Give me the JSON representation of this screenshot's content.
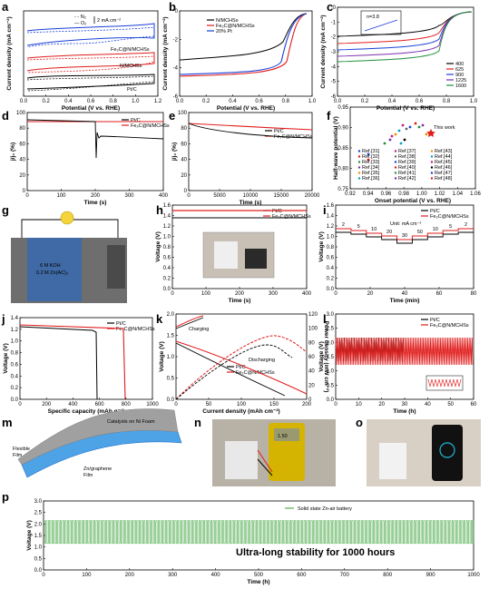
{
  "panels": {
    "a": {
      "letter": "a",
      "ylabel": "Current density (mA cm⁻²)",
      "xlabel": "Potential (V vs. RHE)",
      "scale_label": "2 mA cm⁻²",
      "legend": [
        "N₂",
        "O₂"
      ],
      "labels": [
        "Fe₃C@N/MCHSs",
        "N/MCHSs",
        "Pt/C"
      ],
      "xticks": [
        "0.0",
        "0.2",
        "0.4",
        "0.6",
        "0.8",
        "1.0",
        "1.2"
      ]
    },
    "b": {
      "letter": "b",
      "ylabel": "Current density (mA cm⁻²)",
      "xlabel": "Potential (V vs. RHE)",
      "legend": [
        "N/MCHSs",
        "Fe₃C@N/MCHSs",
        "20% Pt"
      ],
      "xticks": [
        "0.0",
        "0.2",
        "0.4",
        "0.6",
        "0.8",
        "1.0"
      ],
      "yticks": [
        "0",
        "-2",
        "-4",
        "-6"
      ]
    },
    "c": {
      "letter": "c",
      "ylabel": "Current density (mA cm⁻²)",
      "xlabel": "Potential (V vs. RHE)",
      "inset": "n=3.8",
      "legend": [
        "400",
        "625",
        "900",
        "1225",
        "1600"
      ],
      "xticks": [
        "0.0",
        "0.2",
        "0.4",
        "0.6",
        "0.8",
        "1.0"
      ],
      "yticks": [
        "0",
        "-1",
        "-2",
        "-3",
        "-4",
        "-5",
        "-6"
      ]
    },
    "d": {
      "letter": "d",
      "ylabel": "j/j₀ (%)",
      "xlabel": "Time (s)",
      "legend": [
        "Pt/C",
        "Fe₃C@N/MCHSs"
      ],
      "xticks": [
        "0",
        "100",
        "200",
        "300",
        "400"
      ],
      "yticks": [
        "0",
        "20",
        "40",
        "60",
        "80",
        "100"
      ]
    },
    "e": {
      "letter": "e",
      "ylabel": "j/j₀ (%)",
      "xlabel": "Time (s)",
      "legend": [
        "Pt/C",
        "Fe₃C@N/MCHSs"
      ],
      "xticks": [
        "0",
        "5000",
        "10000",
        "15000",
        "20000"
      ],
      "yticks": [
        "0",
        "20",
        "40",
        "60",
        "80",
        "100"
      ]
    },
    "f": {
      "letter": "f",
      "ylabel": "Half-wave potential (V)",
      "xlabel": "Onset potential (V vs. RHE)",
      "this_work": "This work",
      "refs": [
        "Ref.[31]",
        "Ref.[32]",
        "Ref.[33]",
        "Ref.[34]",
        "Ref.[35]",
        "Ref.[36]",
        "Ref.[37]",
        "Ref.[38]",
        "Ref.[39]",
        "Ref.[40]",
        "Ref.[41]",
        "Ref.[42]",
        "Ref.[43]",
        "Ref.[44]",
        "Ref.[45]",
        "Ref.[46]",
        "Ref.[47]",
        "Ref.[48]"
      ],
      "xticks": [
        "0.92",
        "0.94",
        "0.96",
        "0.98",
        "1.00",
        "1.02",
        "1.04",
        "1.06"
      ],
      "yticks": [
        "0.75",
        "0.80",
        "0.85",
        "0.90",
        "0.95"
      ]
    },
    "g": {
      "letter": "g",
      "electrolyte_line1": "6 M KOH",
      "electrolyte_line2": "0.2 M Zn(AC)₂"
    },
    "h": {
      "letter": "h",
      "ylabel": "Voltage (V)",
      "xlabel": "Time (s)",
      "legend": [
        "Pt/C",
        "Fe₃C@N/MCHSs"
      ],
      "xticks": [
        "0",
        "100",
        "200",
        "300",
        "400"
      ],
      "yticks": [
        "0.0",
        "0.2",
        "0.4",
        "0.6",
        "0.8",
        "1.0",
        "1.2",
        "1.4",
        "1.6"
      ]
    },
    "i": {
      "letter": "i",
      "ylabel": "Voltage (V)",
      "xlabel": "Time (min)",
      "legend": [
        "Pt/C",
        "Fe₃C@N/MCHSs"
      ],
      "units": "Unit: mA cm⁻²",
      "steps": [
        "2",
        "5",
        "10",
        "20",
        "30",
        "50",
        "10",
        "5",
        "2"
      ],
      "xticks": [
        "0",
        "20",
        "40",
        "60",
        "80"
      ],
      "yticks": [
        "0.0",
        "0.2",
        "0.4",
        "0.6",
        "0.8",
        "1.0",
        "1.2",
        "1.4",
        "1.6"
      ]
    },
    "j": {
      "letter": "j",
      "ylabel": "Voltage (V)",
      "xlabel": "Specific capacity (mAh g⁻¹)",
      "legend": [
        "Pt/C",
        "Fe₃C@N/MCHSs"
      ],
      "xticks": [
        "0",
        "200",
        "400",
        "600",
        "800",
        "1000"
      ],
      "yticks": [
        "0.0",
        "0.2",
        "0.4",
        "0.6",
        "0.8",
        "1.0",
        "1.2",
        "1.4"
      ]
    },
    "k": {
      "letter": "k",
      "ylabel": "Voltage (V)",
      "y2label": "Power density (mW cm⁻²)",
      "xlabel": "Current density (mAh cm⁻²)",
      "legend": [
        "Pt/C",
        "Fe₃C@N/MCHSs"
      ],
      "charging": "Charging",
      "discharging": "Discharging",
      "xticks": [
        "0",
        "50",
        "100",
        "150",
        "200"
      ],
      "yticks": [
        "0.0",
        "0.5",
        "1.0",
        "1.5",
        "2.0"
      ],
      "y2ticks": [
        "0",
        "20",
        "40",
        "60",
        "80",
        "100",
        "120"
      ]
    },
    "l": {
      "letter": "l",
      "ylabel": "Voltage (V)",
      "xlabel": "Time (h)",
      "legend": [
        "Pt/C",
        "Fe₃C@N/MCHSs"
      ],
      "xticks": [
        "0",
        "10",
        "20",
        "30",
        "40",
        "50",
        "60"
      ],
      "yticks": [
        "0.0",
        "0.5",
        "1.0",
        "1.5",
        "2.0",
        "2.5",
        "3.0"
      ]
    },
    "m": {
      "letter": "m",
      "catalysts": "Catalysts on Ni Foam",
      "flexible": "Flexible",
      "film": "Film",
      "zn": "Zn/graphene",
      "zn2": "Film"
    },
    "n": {
      "letter": "n",
      "reading": "1.50"
    },
    "o": {
      "letter": "o"
    },
    "p": {
      "letter": "p",
      "ylabel": "Voltage (V)",
      "xlabel": "Time (h)",
      "legend": "Solid state Zn-air battery",
      "annotation": "Ultra-long stability for 1000 hours",
      "xticks": [
        "0",
        "100",
        "200",
        "300",
        "400",
        "500",
        "600",
        "700",
        "800",
        "900",
        "1000"
      ],
      "yticks": [
        "0.0",
        "0.5",
        "1.0",
        "1.5",
        "2.0",
        "2.5",
        "3.0"
      ]
    }
  },
  "chart_data": [
    {
      "panel": "p",
      "type": "line",
      "series": [
        {
          "name": "Solid state Zn-air battery",
          "x": [
            0,
            1000
          ],
          "charge_v": 2.15,
          "discharge_v": 1.15
        }
      ],
      "xlim": [
        0,
        1000
      ],
      "ylim": [
        0,
        3.0
      ]
    },
    {
      "panel": "h",
      "type": "line",
      "series": [
        {
          "name": "Pt/C",
          "v": 1.36
        },
        {
          "name": "Fe₃C@N/MCHSs",
          "v": 1.48
        }
      ],
      "xlim": [
        0,
        400
      ],
      "ylim": [
        0,
        1.6
      ]
    },
    {
      "panel": "j",
      "type": "line",
      "series": [
        {
          "name": "Pt/C",
          "capacity": 580,
          "v": 1.25
        },
        {
          "name": "Fe₃C@N/MCHSs",
          "capacity": 790,
          "v": 1.28
        }
      ],
      "xlim": [
        0,
        1000
      ],
      "ylim": [
        0,
        1.4
      ]
    },
    {
      "panel": "d",
      "type": "line",
      "series": [
        {
          "name": "Pt/C",
          "end": 70
        },
        {
          "name": "Fe₃C@N/MCHSs",
          "end": 99
        }
      ],
      "xlim": [
        0,
        400
      ],
      "ylim": [
        0,
        100
      ]
    },
    {
      "panel": "e",
      "type": "line",
      "series": [
        {
          "name": "Pt/C",
          "end": 82
        },
        {
          "name": "Fe₃C@N/MCHSs",
          "end": 92
        }
      ],
      "xlim": [
        0,
        20000
      ],
      "ylim": [
        0,
        100
      ]
    }
  ]
}
